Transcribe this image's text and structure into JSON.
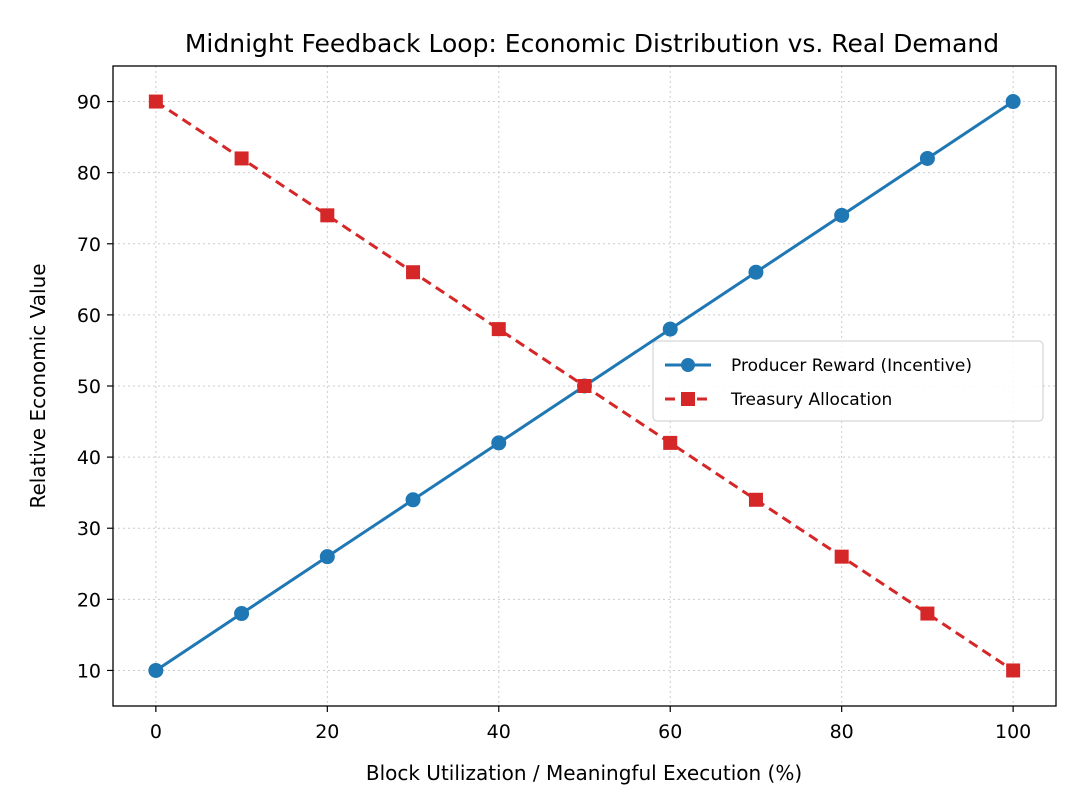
{
  "chart_data": {
    "type": "line",
    "title": "Midnight Feedback Loop: Economic Distribution vs. Real Demand",
    "xlabel": "Block Utilization / Meaningful Execution (%)",
    "ylabel": "Relative Economic Value",
    "x": [
      0,
      10,
      20,
      30,
      40,
      50,
      60,
      70,
      80,
      90,
      100
    ],
    "xlim": [
      -5,
      105
    ],
    "ylim": [
      5,
      95
    ],
    "xticks": [
      0,
      20,
      40,
      60,
      80,
      100
    ],
    "yticks": [
      10,
      20,
      30,
      40,
      50,
      60,
      70,
      80,
      90
    ],
    "grid": true,
    "legend_position": "center-right",
    "series": [
      {
        "name": "Producer Reward (Incentive)",
        "values": [
          10,
          18,
          26,
          34,
          42,
          50,
          58,
          66,
          74,
          82,
          90
        ],
        "color": "#1f77b4",
        "marker": "circle",
        "line_style": "solid"
      },
      {
        "name": "Treasury Allocation",
        "values": [
          90,
          82,
          74,
          66,
          58,
          50,
          42,
          34,
          26,
          18,
          10
        ],
        "color": "#d62728",
        "marker": "square",
        "line_style": "dashed"
      }
    ]
  }
}
